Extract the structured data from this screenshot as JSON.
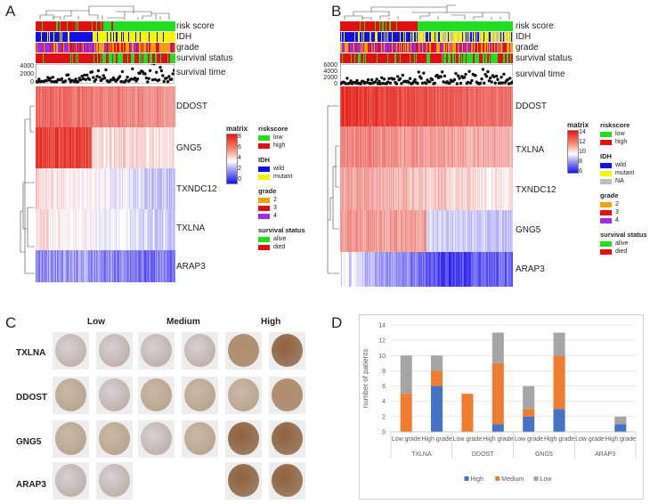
{
  "panelA": {
    "letter": "A",
    "track_labels": [
      "risk score",
      "IDH",
      "grade",
      "survival status",
      "survival  time"
    ],
    "survival_axis": [
      "4000",
      "2000",
      "0"
    ],
    "genes": [
      "DDOST",
      "GNG5",
      "TXNDC12",
      "TXLNA",
      "ARAP3"
    ],
    "matrix_title": "matrix",
    "matrix_ticks": [
      "8",
      "6",
      "4",
      "2",
      "0"
    ],
    "legends": [
      {
        "title": "riskscore",
        "items": [
          {
            "label": "low",
            "color": "#22dd22"
          },
          {
            "label": "high",
            "color": "#e01010"
          }
        ]
      },
      {
        "title": "IDH",
        "items": [
          {
            "label": "wild",
            "color": "#1010e0"
          },
          {
            "label": "mutant",
            "color": "#f5f500"
          }
        ]
      },
      {
        "title": "grade",
        "items": [
          {
            "label": "2",
            "color": "#f5a000"
          },
          {
            "label": "3",
            "color": "#e01010"
          },
          {
            "label": "4",
            "color": "#9a30e0"
          }
        ]
      },
      {
        "title": "survival status",
        "items": [
          {
            "label": "alive",
            "color": "#22dd22"
          },
          {
            "label": "died",
            "color": "#e01010"
          }
        ]
      }
    ]
  },
  "panelB": {
    "letter": "B",
    "track_labels": [
      "risk score",
      "IDH",
      "grade",
      "survival status",
      "survival  time"
    ],
    "survival_axis": [
      "6000",
      "4000",
      "2000",
      "0"
    ],
    "genes": [
      "DDOST",
      "TXLNA",
      "TXNDC12",
      "GNG5",
      "ARAP3"
    ],
    "matrix_title": "matrix",
    "matrix_ticks": [
      "14",
      "12",
      "10",
      "8",
      "6"
    ],
    "legends": [
      {
        "title": "riskscore",
        "items": [
          {
            "label": "low",
            "color": "#22dd22"
          },
          {
            "label": "high",
            "color": "#e01010"
          }
        ]
      },
      {
        "title": "IDH",
        "items": [
          {
            "label": "wild",
            "color": "#1010e0"
          },
          {
            "label": "mutant",
            "color": "#f5f500"
          },
          {
            "label": "NA",
            "color": "#bdbdbd"
          }
        ]
      },
      {
        "title": "grade",
        "items": [
          {
            "label": "2",
            "color": "#f5a000"
          },
          {
            "label": "3",
            "color": "#e01010"
          },
          {
            "label": "4",
            "color": "#9a30e0"
          }
        ]
      },
      {
        "title": "survival status",
        "items": [
          {
            "label": "alive",
            "color": "#22dd22"
          },
          {
            "label": "died",
            "color": "#e01010"
          }
        ]
      }
    ]
  },
  "panelC": {
    "letter": "C",
    "columns": [
      "Low",
      "Medium",
      "High"
    ],
    "genes": [
      "TXLNA",
      "DDOST",
      "GNG5",
      "ARAP3"
    ]
  },
  "panelD": {
    "letter": "D",
    "chart_data": {
      "type": "bar",
      "stacked": true,
      "ylabel": "number of patients",
      "ylim": [
        0,
        14
      ],
      "yticks": [
        "0",
        "2",
        "4",
        "6",
        "8",
        "10",
        "12",
        "14"
      ],
      "categories": [
        "Low grade",
        "High grade",
        "Low grade",
        "High grade",
        "Low grade",
        "High grade",
        "Low grade",
        "High grade"
      ],
      "groups": [
        "TXLNA",
        "DDOST",
        "GNG5",
        "ARAP3"
      ],
      "series": [
        {
          "name": "High",
          "color": "#4472c4",
          "values": [
            0,
            6,
            0,
            1,
            2,
            3,
            0,
            1
          ]
        },
        {
          "name": "Medium",
          "color": "#ed7d31",
          "values": [
            5,
            2,
            5,
            8,
            1,
            7,
            0,
            0
          ]
        },
        {
          "name": "Low",
          "color": "#a5a5a5",
          "values": [
            5,
            2,
            0,
            4,
            3,
            3,
            0,
            1
          ]
        }
      ],
      "legend_position": "bottom"
    }
  }
}
